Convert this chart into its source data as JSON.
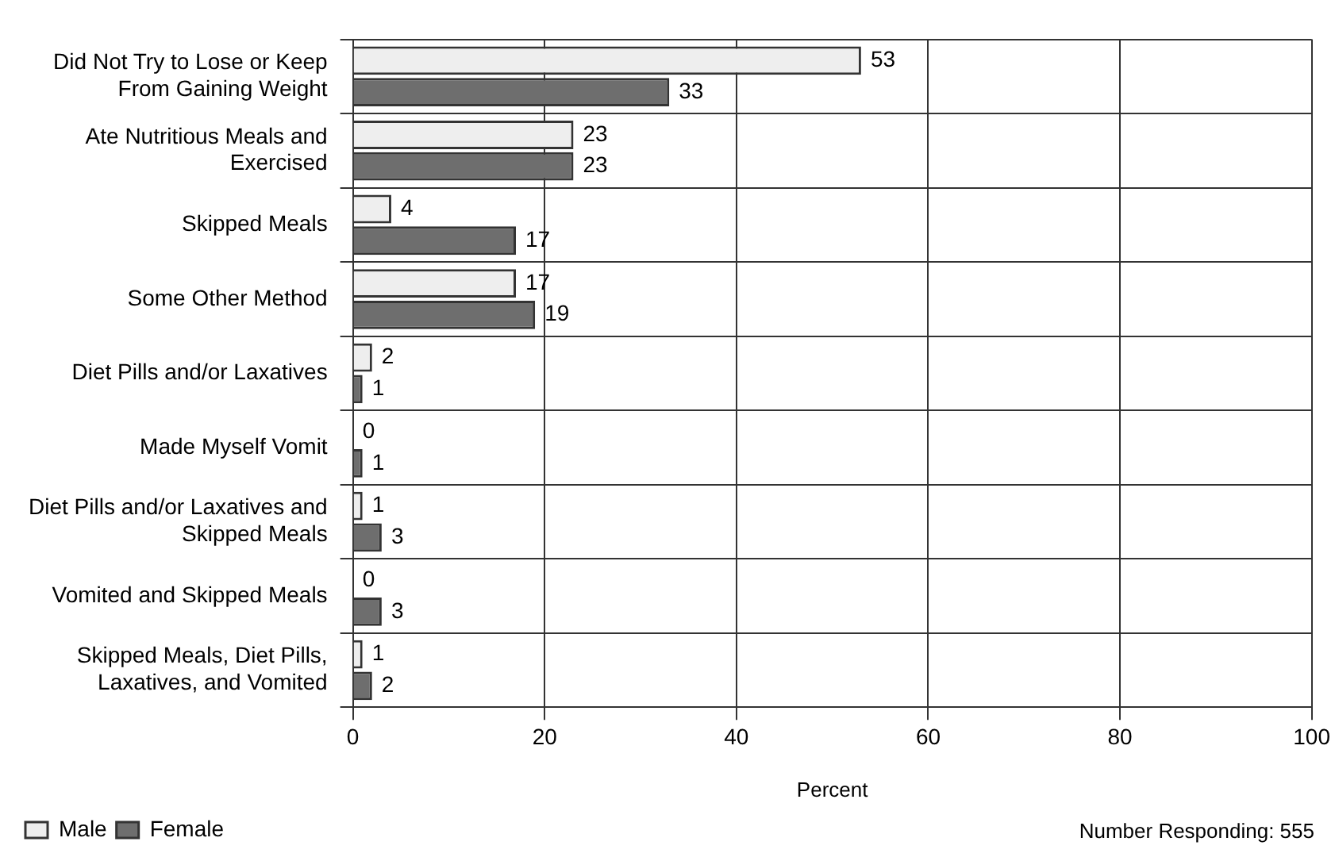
{
  "chart_data": {
    "type": "bar",
    "orientation": "horizontal",
    "xlabel": "Percent",
    "categories": [
      "Did Not Try to Lose or Keep From Gaining Weight",
      "Ate Nutritious Meals and Exercised",
      "Skipped Meals",
      "Some Other Method",
      "Diet Pills and/or Laxatives",
      "Made Myself Vomit",
      "Diet Pills and/or Laxatives and Skipped Meals",
      "Vomited and Skipped Meals",
      "Skipped Meals, Diet Pills, Laxatives, and Vomited"
    ],
    "series": [
      {
        "name": "Male",
        "color": "#eeeeee",
        "values": [
          53,
          23,
          4,
          17,
          2,
          0,
          1,
          0,
          1
        ]
      },
      {
        "name": "Female",
        "color": "#6e6e6e",
        "values": [
          33,
          23,
          17,
          19,
          1,
          1,
          3,
          3,
          2
        ]
      }
    ],
    "xlim": [
      0,
      100
    ],
    "xticks": [
      0,
      20,
      40,
      60,
      80,
      100
    ],
    "grid": true,
    "legend": "bottom left",
    "data_labels": true,
    "annotations": [
      "Number Responding: 555"
    ]
  }
}
